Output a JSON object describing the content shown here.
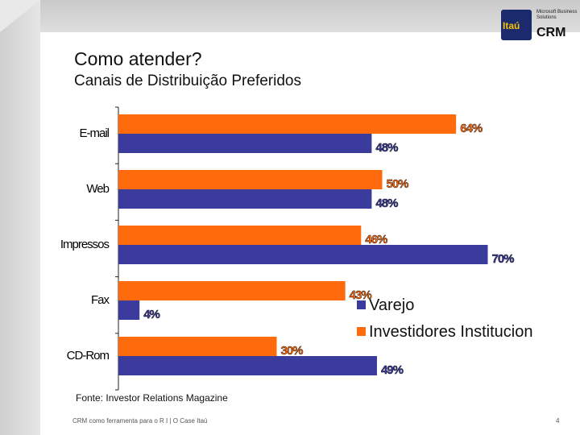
{
  "slide": {
    "title": "Como atender?",
    "subtitle": "Canais de Distribuição Preferidos",
    "source": "Fonte: Investor Relations Magazine",
    "footer": "CRM como ferramenta para o R I | O Case Itaú",
    "page_number": "4"
  },
  "logo": {
    "brand": "Itaú",
    "partner": "Microsoft Business Solutions",
    "product": "CRM"
  },
  "colors": {
    "investidores": "#ff6a0c",
    "varejo": "#3b3b9e"
  },
  "chart_data": {
    "type": "bar",
    "orientation": "horizontal",
    "categories": [
      "E-mail",
      "Web",
      "Impressos",
      "Fax",
      "CD-Rom"
    ],
    "series": [
      {
        "name": "Investidores Institucion",
        "values": [
          64,
          50,
          46,
          43,
          30
        ],
        "labels": [
          "64%",
          "50%",
          "46%",
          "43%",
          "30%"
        ]
      },
      {
        "name": "Varejo",
        "values": [
          48,
          48,
          70,
          4,
          49
        ],
        "labels": [
          "48%",
          "48%",
          "70%",
          "4%",
          "49%"
        ]
      }
    ],
    "legend_position": "right",
    "grid": false,
    "xlim": [
      0,
      80
    ]
  }
}
